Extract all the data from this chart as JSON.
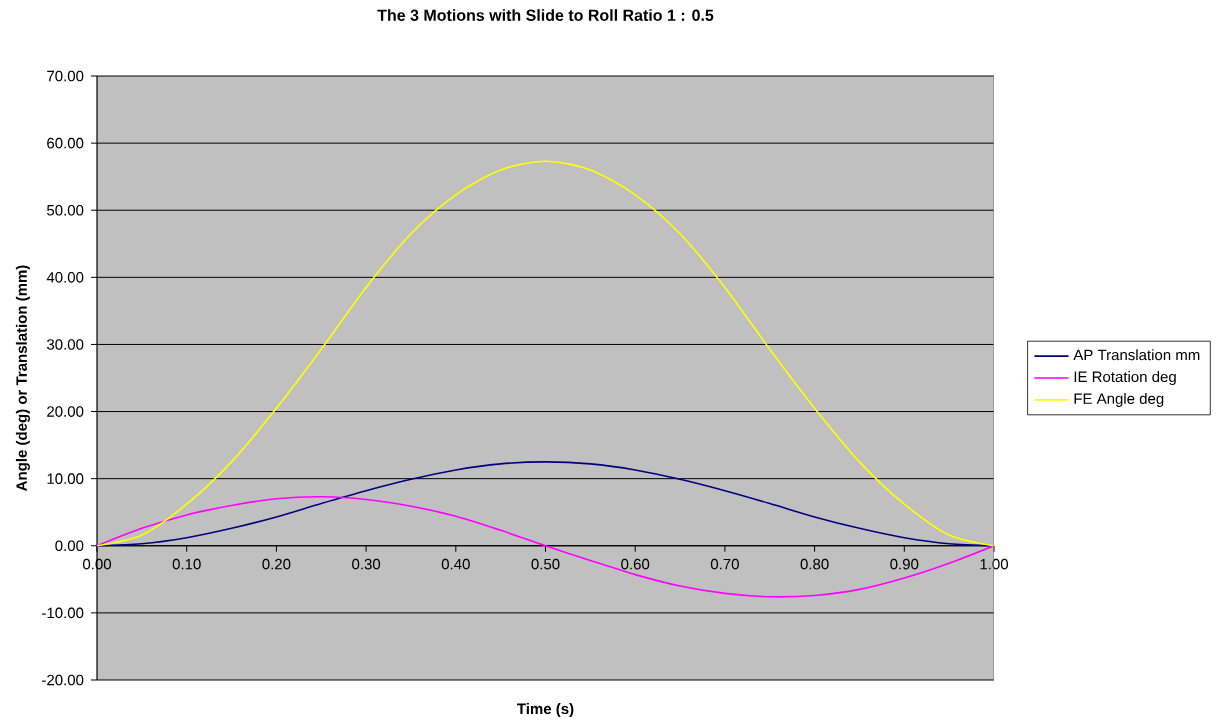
{
  "chart_data": {
    "type": "line",
    "title": "The 3 Motions with Slide to Roll Ratio 1 : 0.5",
    "xlabel": "Time (s)",
    "ylabel": "Angle (deg) or Translation (mm)",
    "x": [
      0,
      0.05,
      0.1,
      0.15,
      0.2,
      0.25,
      0.3,
      0.35,
      0.4,
      0.45,
      0.5,
      0.55,
      0.6,
      0.65,
      0.7,
      0.75,
      0.8,
      0.85,
      0.9,
      0.95,
      1.0
    ],
    "series": [
      {
        "name": "AP Translation mm",
        "color": "#000080",
        "values": [
          0,
          0.3,
          1.2,
          2.6,
          4.3,
          6.3,
          8.2,
          9.9,
          11.3,
          12.2,
          12.5,
          12.2,
          11.3,
          9.9,
          8.2,
          6.3,
          4.3,
          2.6,
          1.2,
          0.3,
          0
        ]
      },
      {
        "name": "IE Rotation deg",
        "color": "#ff00ff",
        "values": [
          0,
          2.6,
          4.6,
          6.0,
          7.0,
          7.3,
          6.9,
          5.9,
          4.4,
          2.3,
          0,
          -2.2,
          -4.3,
          -6.0,
          -7.1,
          -7.6,
          -7.4,
          -6.5,
          -4.8,
          -2.6,
          0
        ]
      },
      {
        "name": "FE Angle deg",
        "color": "#ffff00",
        "values": [
          0,
          1.6,
          6.2,
          12.5,
          20.5,
          29.3,
          38.5,
          46.5,
          52.3,
          56.0,
          57.3,
          56.0,
          52.3,
          46.5,
          38.5,
          29.3,
          20.5,
          12.5,
          6.2,
          1.6,
          0
        ]
      }
    ],
    "xlim": [
      0,
      1
    ],
    "ylim": [
      -20,
      70
    ],
    "xticks": [
      {
        "value": 0,
        "label": "0.00"
      },
      {
        "value": 0.1,
        "label": "0.10"
      },
      {
        "value": 0.2,
        "label": "0.20"
      },
      {
        "value": 0.3,
        "label": "0.30"
      },
      {
        "value": 0.4,
        "label": "0.40"
      },
      {
        "value": 0.5,
        "label": "0.50"
      },
      {
        "value": 0.6,
        "label": "0.60"
      },
      {
        "value": 0.7,
        "label": "0.70"
      },
      {
        "value": 0.8,
        "label": "0.80"
      },
      {
        "value": 0.9,
        "label": "0.90"
      },
      {
        "value": 1.0,
        "label": "1.00"
      }
    ],
    "yticks": [
      {
        "value": -20,
        "label": "-20.00"
      },
      {
        "value": -10,
        "label": "-10.00"
      },
      {
        "value": 0,
        "label": "0.00"
      },
      {
        "value": 10,
        "label": "10.00"
      },
      {
        "value": 20,
        "label": "20.00"
      },
      {
        "value": 30,
        "label": "30.00"
      },
      {
        "value": 40,
        "label": "40.00"
      },
      {
        "value": 50,
        "label": "50.00"
      },
      {
        "value": 60,
        "label": "60.00"
      },
      {
        "value": 70,
        "label": "70.00"
      }
    ],
    "grid": "y",
    "legend": "right",
    "marker": "none",
    "line_style": "solid"
  }
}
